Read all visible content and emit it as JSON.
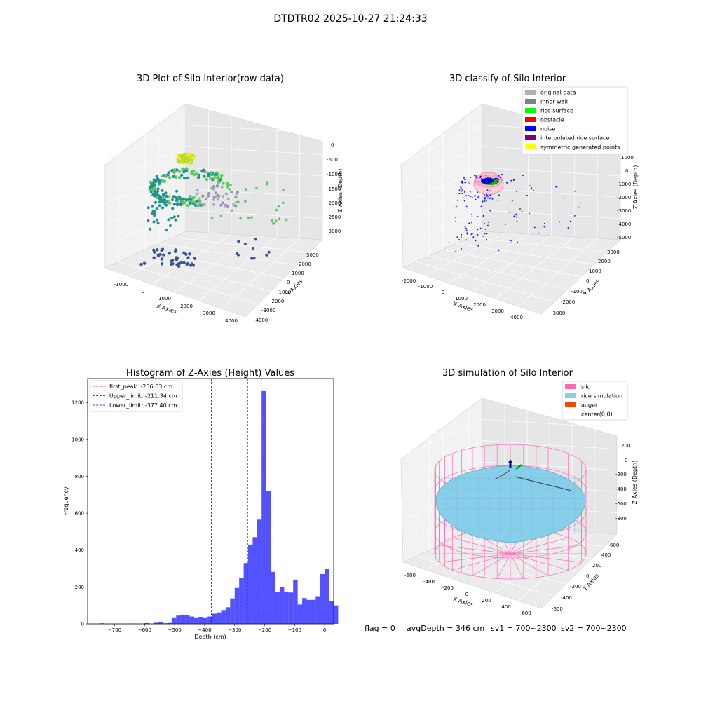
{
  "figure": {
    "suptitle": "DTDTR02 2025-10-27 21:24:33",
    "status": {
      "flag": "flag = 0",
      "avg": "avgDepth = 346 cm",
      "sv1": "sv1 = 700~2300",
      "sv2": "sv2 = 700~2300"
    }
  },
  "panels": {
    "raw": {
      "title": "3D Plot of Silo Interior(row data)",
      "xlabel": "X Axies",
      "ylabel": "Y Axies",
      "zlabel": "Z Axies (Depth)",
      "xticks": [
        "-1000",
        "0",
        "1000",
        "2000",
        "3000",
        "4000"
      ],
      "yticks": [
        "-4000",
        "-3000",
        "-2000",
        "-1000",
        "0",
        "1000",
        "2000",
        "3000"
      ],
      "zticks": [
        "-3000",
        "-2500",
        "-2000",
        "-1500",
        "-1000",
        "-500",
        "0"
      ]
    },
    "classify": {
      "title": "3D classify of Silo Interior",
      "xlabel": "X Axies",
      "ylabel": "Y Axies",
      "zlabel": "Z Axies (Depth)",
      "xticks": [
        "-2000",
        "-1000",
        "0",
        "1000",
        "2000",
        "3000",
        "4000"
      ],
      "yticks": [
        "-3000",
        "-2000",
        "-1000",
        "0",
        "1000",
        "2000",
        "3000"
      ],
      "zticks": [
        "-5000",
        "-4000",
        "-3000",
        "-2000",
        "-1000",
        "0",
        "1000"
      ],
      "legend": [
        {
          "label": "original data",
          "color": "#b0b0b0"
        },
        {
          "label": "inner wall",
          "color": "#808080"
        },
        {
          "label": "rice surface",
          "color": "#00ff00"
        },
        {
          "label": "obstacle",
          "color": "#ff0000"
        },
        {
          "label": "noise",
          "color": "#0000ff"
        },
        {
          "label": "interpolated rice surface",
          "color": "#800080"
        },
        {
          "label": "symmetric generated points",
          "color": "#ffff00"
        }
      ]
    },
    "simulation": {
      "title": "3D simulation of Silo Interior",
      "xlabel": "X Axies",
      "ylabel": "Y Axies",
      "zlabel": "Z Axies (Depth)",
      "xticks": [
        "-600",
        "-400",
        "-200",
        "0",
        "200",
        "400",
        "600"
      ],
      "yticks": [
        "-600",
        "-400",
        "-200",
        "0",
        "200",
        "400",
        "600"
      ],
      "zticks": [
        "-800",
        "-600",
        "-400",
        "-200",
        "0",
        "200"
      ],
      "legend": [
        {
          "label": "silo",
          "color": "#ff69b4"
        },
        {
          "label": "rice simulation",
          "color": "#87ceeb"
        },
        {
          "label": "auger",
          "color": "#ff4500"
        },
        {
          "label": "center(0,0)",
          "color": "#ffffff"
        }
      ]
    }
  },
  "chart_data": [
    {
      "type": "scatter",
      "title": "3D Plot of Silo Interior(row data)",
      "xlabel": "X Axies",
      "ylabel": "Y Axies",
      "zlabel": "Z Axies (Depth)",
      "xlim": [
        -1500,
        4200
      ],
      "ylim": [
        -4000,
        3500
      ],
      "zlim": [
        -3200,
        200
      ],
      "colormap": "viridis"
    },
    {
      "type": "scatter",
      "title": "3D classify of Silo Interior",
      "xlabel": "X Axies",
      "ylabel": "Y Axies",
      "zlabel": "Z Axies (Depth)",
      "xlim": [
        -2300,
        4500
      ],
      "ylim": [
        -3300,
        3300
      ],
      "zlim": [
        -5000,
        1200
      ],
      "legend_position": "top-right"
    },
    {
      "type": "bar",
      "title": "Histogram of Z-Axies (Height) Values",
      "xlabel": "Depth (cm)",
      "ylabel": "Frequency",
      "xlim": [
        -790,
        30
      ],
      "ylim": [
        0,
        1330
      ],
      "bin_width": 15,
      "bin_start": -765,
      "bar_color": "#0000ff",
      "xticks": [
        -700,
        -600,
        -500,
        -400,
        -300,
        -200,
        -100,
        0
      ],
      "yticks": [
        0,
        200,
        400,
        600,
        800,
        1000,
        1200
      ],
      "values": [
        0,
        3,
        0,
        0,
        0,
        0,
        0,
        0,
        2,
        0,
        0,
        4,
        0,
        6,
        8,
        3,
        5,
        35,
        45,
        50,
        48,
        40,
        35,
        38,
        35,
        40,
        55,
        62,
        75,
        90,
        138,
        195,
        250,
        330,
        430,
        470,
        565,
        1262,
        720,
        282,
        175,
        200,
        175,
        170,
        240,
        105,
        140,
        130,
        130,
        150,
        270,
        300,
        125,
        100
      ],
      "vlines": [
        {
          "x": -256.63,
          "label": "first_peak: -256.63 cm",
          "color": "#ff0000"
        },
        {
          "x": -211.34,
          "label": "Upper_limit: -211.34 cm",
          "color": "#0000ff"
        },
        {
          "x": -377.4,
          "label": "Lower_limit: -377.40 cm",
          "color": "#0000ff"
        }
      ],
      "legend_position": "top-left"
    },
    {
      "type": "area",
      "title": "3D simulation of Silo Interior",
      "xlabel": "X Axies",
      "ylabel": "Y Axies",
      "zlabel": "Z Axies (Depth)",
      "xlim": [
        -700,
        700
      ],
      "ylim": [
        -700,
        700
      ],
      "zlim": [
        -900,
        300
      ],
      "legend_position": "top-right"
    }
  ]
}
